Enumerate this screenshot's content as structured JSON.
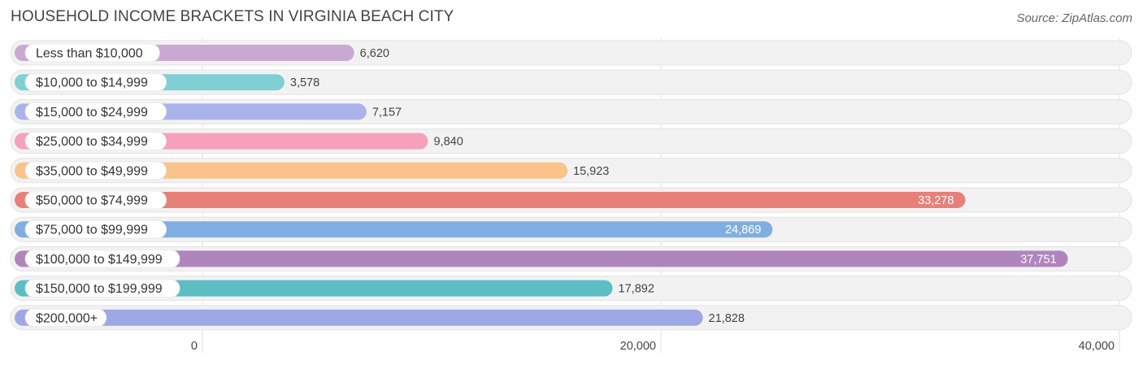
{
  "title": "HOUSEHOLD INCOME BRACKETS IN VIRGINIA BEACH CITY",
  "source": "Source: ZipAtlas.com",
  "chart_data": {
    "type": "bar",
    "orientation": "horizontal",
    "title": "HOUSEHOLD INCOME BRACKETS IN VIRGINIA BEACH CITY",
    "xlim": [
      0,
      40000
    ],
    "x_ticks": [
      0,
      20000,
      40000
    ],
    "x_tick_labels": [
      "0",
      "20,000",
      "40,000"
    ],
    "grid": true,
    "categories": [
      "Less than $10,000",
      "$10,000 to $14,999",
      "$15,000 to $24,999",
      "$25,000 to $34,999",
      "$35,000 to $49,999",
      "$50,000 to $74,999",
      "$75,000 to $99,999",
      "$100,000 to $149,999",
      "$150,000 to $199,999",
      "$200,000+"
    ],
    "values": [
      6620,
      3578,
      7157,
      9840,
      15923,
      33278,
      24869,
      37751,
      17892,
      21828
    ],
    "value_labels": [
      "6,620",
      "3,578",
      "7,157",
      "9,840",
      "15,923",
      "33,278",
      "24,869",
      "37,751",
      "17,892",
      "21,828"
    ],
    "colors": [
      "#c9a9d1",
      "#7fcfd4",
      "#aab4ea",
      "#f7a0ba",
      "#f9c38a",
      "#e8807a",
      "#80aee2",
      "#b085bc",
      "#5cbdc5",
      "#9ea8e6"
    ]
  }
}
